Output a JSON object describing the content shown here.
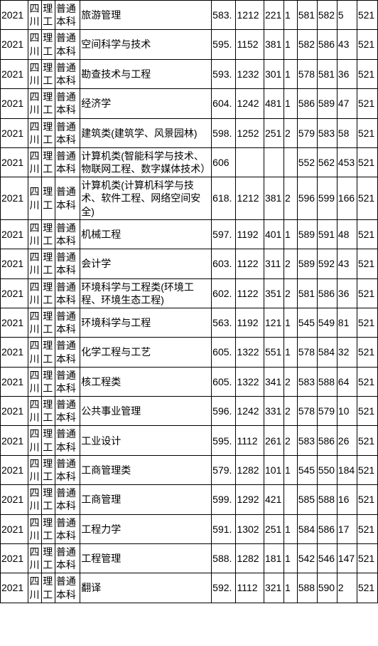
{
  "rows": [
    {
      "year": "2021",
      "prov": "四川",
      "sci": "理工",
      "batch": "普通本科",
      "major": "旅游管理",
      "c1": "583.",
      "c2": "1212",
      "c3": "221",
      "c4": "1",
      "c5": "581",
      "c6": "582",
      "c7": "5",
      "c8": "521"
    },
    {
      "year": "2021",
      "prov": "四川",
      "sci": "理工",
      "batch": "普通本科",
      "major": "空间科学与技术",
      "c1": "595.",
      "c2": "1152",
      "c3": "381",
      "c4": "1",
      "c5": "582",
      "c6": "586",
      "c7": "43",
      "c8": "521"
    },
    {
      "year": "2021",
      "prov": "四川",
      "sci": "理工",
      "batch": "普通本科",
      "major": "勘查技术与工程",
      "c1": "593.",
      "c2": "1232",
      "c3": "301",
      "c4": "1",
      "c5": "578",
      "c6": "581",
      "c7": "36",
      "c8": "521"
    },
    {
      "year": "2021",
      "prov": "四川",
      "sci": "理工",
      "batch": "普通本科",
      "major": "经济学",
      "c1": "604.",
      "c2": "1242",
      "c3": "481",
      "c4": "1",
      "c5": "586",
      "c6": "589",
      "c7": "47",
      "c8": "521"
    },
    {
      "year": "2021",
      "prov": "四川",
      "sci": "理工",
      "batch": "普通本科",
      "major": "建筑类(建筑学、风景园林)",
      "c1": "598.",
      "c2": "1252",
      "c3": "251",
      "c4": "2",
      "c5": "579",
      "c6": "583",
      "c7": "58",
      "c8": "521"
    },
    {
      "year": "2021",
      "prov": "四川",
      "sci": "理工",
      "batch": "普通本科",
      "major": "计算机类(智能科学与技术、物联网工程、数字媒体技术）",
      "c1": "606",
      "c2": "",
      "c3": "",
      "c4": "",
      "c5": "552",
      "c6": "562",
      "c7": "453",
      "c8": "521"
    },
    {
      "year": "2021",
      "prov": "四川",
      "sci": "理工",
      "batch": "普通本科",
      "major": "计算机类(计算机科学与技术、软件工程、网络空间安全)",
      "c1": "618.",
      "c2": "1212",
      "c3": "381",
      "c4": "2",
      "c5": "596",
      "c6": "599",
      "c7": "166",
      "c8": "521"
    },
    {
      "year": "2021",
      "prov": "四川",
      "sci": "理工",
      "batch": "普通本科",
      "major": "机械工程",
      "c1": "597.",
      "c2": "1192",
      "c3": "401",
      "c4": "1",
      "c5": "589",
      "c6": "591",
      "c7": "48",
      "c8": "521"
    },
    {
      "year": "2021",
      "prov": "四川",
      "sci": "理工",
      "batch": "普通本科",
      "major": "会计学",
      "c1": "603.",
      "c2": "1122",
      "c3": "311",
      "c4": "2",
      "c5": "589",
      "c6": "592",
      "c7": "43",
      "c8": "521"
    },
    {
      "year": "2021",
      "prov": "四川",
      "sci": "理工",
      "batch": "普通本科",
      "major": "环境科学与工程类(环境工程、环境生态工程)",
      "c1": "602.",
      "c2": "1122",
      "c3": "351",
      "c4": "2",
      "c5": "581",
      "c6": "586",
      "c7": "36",
      "c8": "521"
    },
    {
      "year": "2021",
      "prov": "四川",
      "sci": "理工",
      "batch": "普通本科",
      "major": "环境科学与工程",
      "c1": "563.",
      "c2": "1192",
      "c3": "121",
      "c4": "1",
      "c5": "545",
      "c6": "549",
      "c7": "81",
      "c8": "521"
    },
    {
      "year": "2021",
      "prov": "四川",
      "sci": "理工",
      "batch": "普通本科",
      "major": "化学工程与工艺",
      "c1": "605.",
      "c2": "1322",
      "c3": "551",
      "c4": "1",
      "c5": "578",
      "c6": "584",
      "c7": "32",
      "c8": "521"
    },
    {
      "year": "2021",
      "prov": "四川",
      "sci": "理工",
      "batch": "普通本科",
      "major": "核工程类",
      "c1": "605.",
      "c2": "1322",
      "c3": "341",
      "c4": "2",
      "c5": "583",
      "c6": "588",
      "c7": "64",
      "c8": "521"
    },
    {
      "year": "2021",
      "prov": "四川",
      "sci": "理工",
      "batch": "普通本科",
      "major": "公共事业管理",
      "c1": "596.",
      "c2": "1242",
      "c3": "331",
      "c4": "2",
      "c5": "578",
      "c6": "579",
      "c7": "10",
      "c8": "521"
    },
    {
      "year": "2021",
      "prov": "四川",
      "sci": "理工",
      "batch": "普通本科",
      "major": "工业设计",
      "c1": "595.",
      "c2": "1112",
      "c3": "261",
      "c4": "2",
      "c5": "583",
      "c6": "586",
      "c7": "26",
      "c8": "521"
    },
    {
      "year": "2021",
      "prov": "四川",
      "sci": "理工",
      "batch": "普通本科",
      "major": "工商管理类",
      "c1": "579.",
      "c2": "1282",
      "c3": "101",
      "c4": "1",
      "c5": "545",
      "c6": "550",
      "c7": "184",
      "c8": "521"
    },
    {
      "year": "2021",
      "prov": "四川",
      "sci": "理工",
      "batch": "普通本科",
      "major": "工商管理",
      "c1": "599.",
      "c2": "1292",
      "c3": "421",
      "c4": "",
      "c5": "585",
      "c6": "588",
      "c7": "16",
      "c8": "521"
    },
    {
      "year": "2021",
      "prov": "四川",
      "sci": "理工",
      "batch": "普通本科",
      "major": "工程力学",
      "c1": "591.",
      "c2": "1302",
      "c3": "251",
      "c4": "1",
      "c5": "584",
      "c6": "586",
      "c7": "17",
      "c8": "521"
    },
    {
      "year": "2021",
      "prov": "四川",
      "sci": "理工",
      "batch": "普通本科",
      "major": "工程管理",
      "c1": "588.",
      "c2": "1282",
      "c3": "181",
      "c4": "1",
      "c5": "542",
      "c6": "546",
      "c7": "147",
      "c8": "521"
    },
    {
      "year": "2021",
      "prov": "四川",
      "sci": "理工",
      "batch": "普通本科",
      "major": "翻译",
      "c1": "592.",
      "c2": "1112",
      "c3": "321",
      "c4": "1",
      "c5": "588",
      "c6": "590",
      "c7": "2",
      "c8": "521"
    }
  ]
}
